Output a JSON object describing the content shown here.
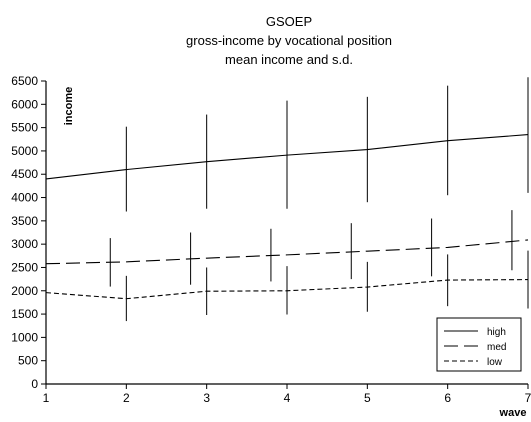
{
  "chart_data": {
    "type": "line",
    "title": "GSOEP",
    "subtitle_1": "gross-income by vocational position",
    "subtitle_2": "mean income and s.d.",
    "xlabel": "wave",
    "ylabel": "income",
    "x": [
      1,
      2,
      3,
      4,
      5,
      6,
      7
    ],
    "xlim": [
      1,
      7
    ],
    "ylim": [
      0,
      6500
    ],
    "yticks": [
      0,
      500,
      1000,
      1500,
      2000,
      2500,
      3000,
      3500,
      4000,
      4500,
      5000,
      5500,
      6000,
      6500
    ],
    "grid": false,
    "legend_position": "bottom-right",
    "series": [
      {
        "name": "high",
        "style": "solid",
        "values": [
          4400,
          4600,
          4770,
          4910,
          5030,
          5220,
          5350
        ],
        "sd_x": [
          2,
          3,
          4,
          5,
          6,
          7
        ],
        "sd_low": [
          3700,
          3760,
          3760,
          3900,
          4050,
          4100
        ],
        "sd_high": [
          5520,
          5780,
          6080,
          6160,
          6400,
          6580
        ]
      },
      {
        "name": "med",
        "style": "longdash",
        "values": [
          2580,
          2620,
          2700,
          2770,
          2850,
          2930,
          3090
        ],
        "sd_x": [
          1.8,
          2.8,
          3.8,
          4.8,
          5.8,
          6.8
        ],
        "sd_low": [
          2090,
          2130,
          2200,
          2250,
          2310,
          2440
        ],
        "sd_high": [
          3130,
          3250,
          3330,
          3450,
          3550,
          3730
        ]
      },
      {
        "name": "low",
        "style": "shortdash",
        "values": [
          1960,
          1830,
          1990,
          2000,
          2080,
          2230,
          2240
        ],
        "sd_x": [
          2,
          3,
          4,
          5,
          6,
          7
        ],
        "sd_low": [
          1350,
          1480,
          1490,
          1550,
          1670,
          1620
        ],
        "sd_high": [
          2320,
          2500,
          2530,
          2620,
          2780,
          2860
        ]
      }
    ]
  }
}
